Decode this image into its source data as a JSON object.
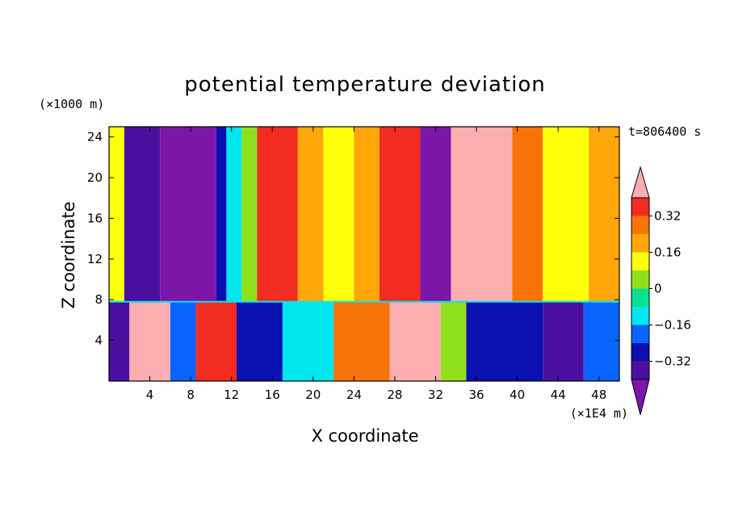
{
  "chart_data": {
    "type": "heatmap",
    "title": "potential temperature deviation",
    "xlabel": "X coordinate",
    "ylabel": "Z coordinate",
    "x_unit": "(×1E4 m)",
    "y_unit": "(×1000 m)",
    "time_label": "t=806400 s",
    "xlim": [
      0,
      50
    ],
    "ylim": [
      0,
      25
    ],
    "x_ticks": [
      4,
      8,
      12,
      16,
      20,
      24,
      28,
      32,
      36,
      40,
      44,
      48
    ],
    "y_ticks": [
      4,
      8,
      12,
      16,
      20,
      24
    ],
    "colorbar": {
      "levels": [
        -0.4,
        -0.32,
        -0.24,
        -0.16,
        -0.08,
        0,
        0.08,
        0.16,
        0.24,
        0.32,
        0.4
      ],
      "tick_labels": [
        "0.32",
        "0.16",
        "0",
        "−0.16",
        "−0.32"
      ],
      "tick_values": [
        0.32,
        0.16,
        0,
        -0.16,
        -0.32
      ],
      "colors": [
        "#7b16a8",
        "#4b0fa0",
        "#0b10b0",
        "#0a64ff",
        "#00e7f0",
        "#0be090",
        "#8ee01a",
        "#ffff0a",
        "#ffa608",
        "#f7740a",
        "#f22c20",
        "#fbadb0"
      ]
    },
    "upper_columns": [
      {
        "x0": 0.0,
        "x1": 1.5,
        "level": 7
      },
      {
        "x0": 1.5,
        "x1": 5.0,
        "level": 1
      },
      {
        "x0": 5.0,
        "x1": 10.5,
        "level": 0
      },
      {
        "x0": 10.5,
        "x1": 11.5,
        "level": 2
      },
      {
        "x0": 11.5,
        "x1": 13.0,
        "level": 4
      },
      {
        "x0": 13.0,
        "x1": 14.5,
        "level": 6
      },
      {
        "x0": 14.5,
        "x1": 18.5,
        "level": 10
      },
      {
        "x0": 18.5,
        "x1": 21.0,
        "level": 8
      },
      {
        "x0": 21.0,
        "x1": 24.0,
        "level": 7
      },
      {
        "x0": 24.0,
        "x1": 26.5,
        "level": 8
      },
      {
        "x0": 26.5,
        "x1": 30.5,
        "level": 10
      },
      {
        "x0": 30.5,
        "x1": 33.5,
        "level": 0
      },
      {
        "x0": 33.5,
        "x1": 39.5,
        "level": 11
      },
      {
        "x0": 39.5,
        "x1": 42.5,
        "level": 9
      },
      {
        "x0": 42.5,
        "x1": 47.0,
        "level": 7
      },
      {
        "x0": 47.0,
        "x1": 50.0,
        "level": 8
      }
    ],
    "lower_columns": [
      {
        "x0": 0.0,
        "x1": 2.0,
        "level": 1
      },
      {
        "x0": 2.0,
        "x1": 6.0,
        "level": 11
      },
      {
        "x0": 6.0,
        "x1": 8.5,
        "level": 3
      },
      {
        "x0": 8.5,
        "x1": 12.5,
        "level": 10
      },
      {
        "x0": 12.5,
        "x1": 17.0,
        "level": 2
      },
      {
        "x0": 17.0,
        "x1": 22.0,
        "level": 4
      },
      {
        "x0": 22.0,
        "x1": 27.5,
        "level": 9
      },
      {
        "x0": 27.5,
        "x1": 32.5,
        "level": 11
      },
      {
        "x0": 32.5,
        "x1": 35.0,
        "level": 6
      },
      {
        "x0": 35.0,
        "x1": 42.5,
        "level": 2
      },
      {
        "x0": 42.5,
        "x1": 46.5,
        "level": 1
      },
      {
        "x0": 46.5,
        "x1": 50.0,
        "level": 3
      }
    ],
    "interface_z": 7.8
  }
}
